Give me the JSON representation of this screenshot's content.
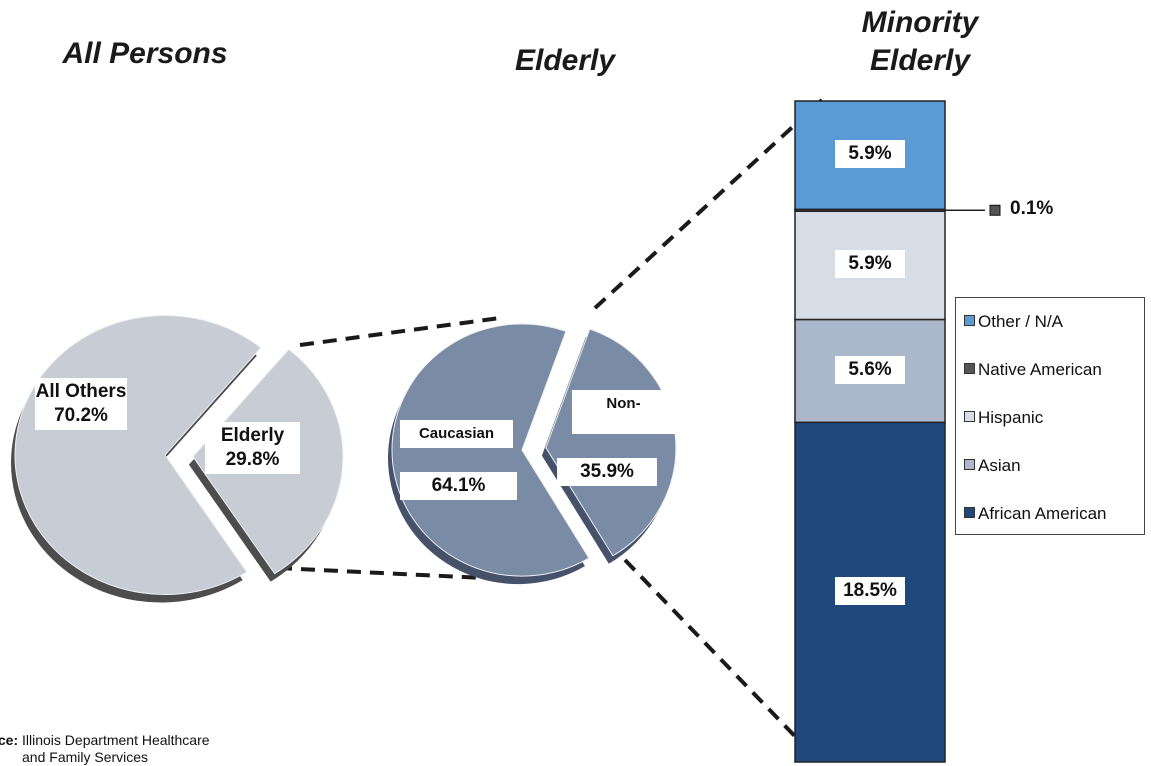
{
  "chart_data": [
    {
      "type": "pie",
      "title": "All Persons",
      "categories": [
        "All Others",
        "Elderly"
      ],
      "values": [
        70.2,
        29.8
      ],
      "value_labels": [
        "70.2%",
        "29.8%"
      ],
      "color": "#c8ccd4"
    },
    {
      "type": "pie",
      "title": "Elderly",
      "categories": [
        "Caucasian",
        "Non-"
      ],
      "values": [
        64.1,
        35.9
      ],
      "value_labels": [
        "64.1%",
        "35.9%"
      ],
      "color": "#7a8ba5"
    },
    {
      "type": "stacked_bar",
      "title": "Minority Elderly",
      "series": [
        {
          "name": "Other / N/A",
          "color": "#5b9bd5",
          "values": [
            5.9
          ],
          "value_labels": [
            "5.9%"
          ]
        },
        {
          "name": "Native American",
          "color": "#555555",
          "values": [
            0.1
          ],
          "value_labels": [
            "0.1%"
          ]
        },
        {
          "name": "Hispanic",
          "color": "#d7dde7",
          "values": [
            5.9
          ],
          "value_labels": [
            "5.9%"
          ]
        },
        {
          "name": "Asian",
          "color": "#abb7ca",
          "values": [
            5.6
          ],
          "value_labels": [
            "5.6%"
          ]
        },
        {
          "name": "African American",
          "color": "#1f497d",
          "values": [
            18.5
          ],
          "value_labels": [
            "18.5%"
          ]
        }
      ]
    }
  ],
  "source": {
    "label": "Source:",
    "text": "Illinois Department Healthcare and Family Services"
  }
}
